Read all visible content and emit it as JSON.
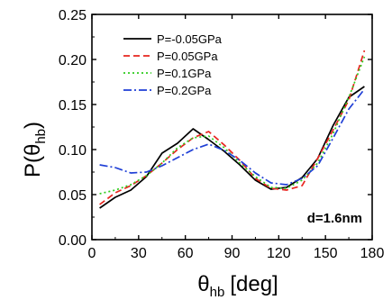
{
  "chart_data": {
    "type": "line",
    "xlabel": {
      "symbol": "θ",
      "subscript": "hb",
      "unit": "[deg]"
    },
    "ylabel": {
      "prefix": "P(θ",
      "subscript": "hb",
      "suffix": ")"
    },
    "xlim": [
      0,
      180
    ],
    "ylim": [
      0.0,
      0.25
    ],
    "xticks": [
      0,
      30,
      60,
      90,
      120,
      150,
      180
    ],
    "xtick_labels": [
      "0",
      "30",
      "60",
      "90",
      "120",
      "150",
      "180"
    ],
    "yticks": [
      0.0,
      0.05,
      0.1,
      0.15,
      0.2,
      0.25
    ],
    "ytick_labels": [
      "0.00",
      "0.05",
      "0.10",
      "0.15",
      "0.20",
      "0.25"
    ],
    "grid": false,
    "legend_position": "top-left",
    "annotation": "d=1.6nm",
    "series": [
      {
        "name": "P=-0.05GPa",
        "color": "#000000",
        "dash": "solid",
        "x": [
          5,
          15,
          25,
          35,
          45,
          55,
          65,
          75,
          85,
          95,
          105,
          115,
          125,
          135,
          145,
          155,
          165,
          175
        ],
        "y": [
          0.035,
          0.047,
          0.055,
          0.07,
          0.096,
          0.107,
          0.123,
          0.111,
          0.098,
          0.083,
          0.066,
          0.056,
          0.058,
          0.069,
          0.09,
          0.127,
          0.158,
          0.17
        ]
      },
      {
        "name": "P=0.05GPa",
        "color": "#e8251f",
        "dash": "dashed",
        "x": [
          5,
          15,
          25,
          35,
          45,
          55,
          65,
          75,
          85,
          95,
          105,
          115,
          125,
          135,
          145,
          155,
          165,
          175
        ],
        "y": [
          0.039,
          0.052,
          0.06,
          0.071,
          0.085,
          0.1,
          0.113,
          0.12,
          0.105,
          0.088,
          0.068,
          0.057,
          0.055,
          0.06,
          0.09,
          0.122,
          0.155,
          0.21
        ]
      },
      {
        "name": "P=0.1GPa",
        "color": "#2ecc1e",
        "dash": "dotted",
        "x": [
          5,
          15,
          25,
          35,
          45,
          55,
          65,
          75,
          85,
          95,
          105,
          115,
          125,
          135,
          145,
          155,
          165,
          175
        ],
        "y": [
          0.051,
          0.055,
          0.061,
          0.071,
          0.085,
          0.102,
          0.113,
          0.115,
          0.102,
          0.085,
          0.07,
          0.058,
          0.057,
          0.066,
          0.085,
          0.118,
          0.158,
          0.203
        ]
      },
      {
        "name": "P=0.2GPa",
        "color": "#1f3fd6",
        "dash": "dashdot",
        "x": [
          5,
          15,
          25,
          35,
          45,
          55,
          65,
          75,
          85,
          95,
          105,
          115,
          125,
          135,
          145,
          155,
          165,
          175
        ],
        "y": [
          0.083,
          0.08,
          0.074,
          0.075,
          0.082,
          0.091,
          0.1,
          0.106,
          0.099,
          0.088,
          0.074,
          0.063,
          0.061,
          0.068,
          0.082,
          0.113,
          0.145,
          0.167
        ]
      }
    ]
  }
}
